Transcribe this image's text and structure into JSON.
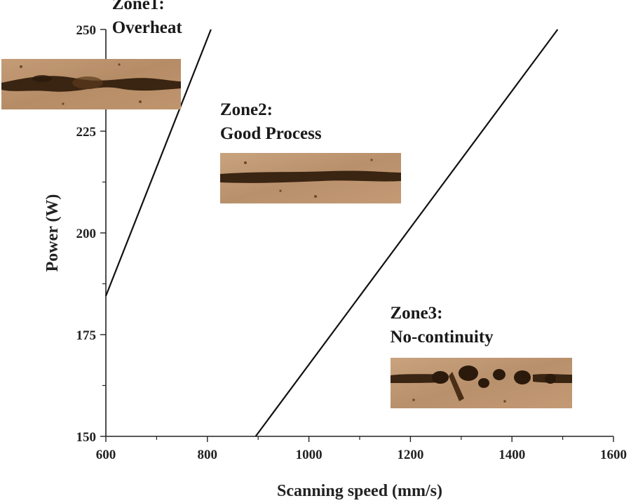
{
  "chart_data": {
    "type": "line",
    "title": "",
    "xlabel": "Scanning speed (mm/s)",
    "ylabel": "Power (W)",
    "xlim": [
      600,
      1600
    ],
    "ylim": [
      150,
      250
    ],
    "xticks": [
      600,
      800,
      1000,
      1200,
      1400,
      1600
    ],
    "yticks": [
      150,
      175,
      200,
      225,
      250
    ],
    "series": [
      {
        "name": "Zone1/Zone2 boundary",
        "x": [
          600,
          807
        ],
        "y": [
          184.5,
          250
        ]
      },
      {
        "name": "Zone2/Zone3 boundary",
        "x": [
          895,
          1490
        ],
        "y": [
          150,
          250
        ]
      }
    ],
    "annotations": [
      {
        "id": "zone1",
        "lines": [
          "Zone1:",
          "Overheat"
        ],
        "x": 612,
        "y": 255,
        "image": "overheat-track"
      },
      {
        "id": "zone2",
        "lines": [
          "Zone2:",
          "Good Process"
        ],
        "x": 825,
        "y": 229,
        "image": "good-track"
      },
      {
        "id": "zone3",
        "lines": [
          "Zone3:",
          "No-continuity"
        ],
        "x": 1160,
        "y": 179,
        "image": "discontinuous-track"
      }
    ]
  }
}
